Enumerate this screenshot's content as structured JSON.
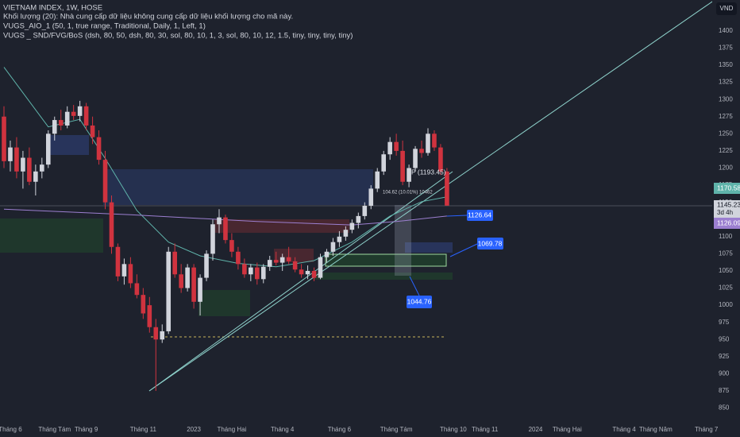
{
  "chart_data": {
    "type": "candlestick",
    "title": "VIETNAM INDEX, 1W, HOSE",
    "indicators": [
      "Khối lượng (20): Nhà cung cấp dữ liệu không cung cấp dữ liệu khối lượng cho mã này.",
      "VUGS_AIO_1 (50, 1, true range, Traditional, Daily, 1, Left, 1)",
      "VUGS _ SND/FVG/BoS (dsh, 80, 50, dsh, 80, 30, sol, 80, 10, 1, 3, sol, 80, 10, 12, 1.5, tiny, tiny, tiny, tiny)"
    ],
    "categories": [
      null,
      "Tháng 6",
      null,
      null,
      null,
      null,
      null,
      null,
      "Tháng Tám",
      null,
      null,
      null,
      null,
      "Tháng 9",
      null,
      null,
      null,
      null,
      null,
      null,
      null,
      null,
      "Tháng 11",
      null,
      null,
      null,
      null,
      null,
      null,
      null,
      "2023",
      null,
      null,
      null,
      null,
      null,
      "Tháng Hai",
      null,
      null,
      null,
      null,
      null,
      null,
      null,
      "Tháng 4",
      null,
      null,
      null,
      null,
      null,
      null,
      null,
      null,
      "Tháng 6",
      null,
      null,
      null,
      null,
      null,
      null,
      null,
      null,
      "Tháng Tám",
      null,
      null,
      null,
      null,
      null,
      null,
      null,
      null,
      "Tháng 10",
      null,
      null,
      null,
      null,
      "Tháng 11",
      null,
      null,
      null,
      null,
      null,
      null,
      null,
      "2024",
      null,
      null,
      null,
      null,
      "Tháng Hai",
      null,
      null,
      null,
      null,
      null,
      null,
      null,
      null,
      "Tháng 4",
      null,
      null,
      null,
      null,
      "Tháng Năm",
      null,
      null,
      null,
      null,
      null,
      null,
      null,
      "Tháng 7"
    ],
    "open": [
      1275,
      1210,
      1230,
      1195,
      1215,
      1180,
      1195,
      1205,
      1250,
      1270,
      1262,
      1282,
      1276,
      1290,
      1262,
      1245,
      1212,
      1150,
      1085,
      1042,
      1060,
      1032,
      1015,
      1000,
      968,
      950,
      962,
      1078,
      1045,
      1025,
      1055,
      1005,
      1040,
      1075,
      1118,
      1128,
      1095,
      1078,
      1060,
      1045,
      1055,
      1038,
      1056,
      1066,
      1062,
      1070,
      1064,
      1052,
      1045,
      1050,
      1040,
      1070,
      1078,
      1092,
      1100,
      1110,
      1120,
      1130,
      1145,
      1170,
      1195,
      1220,
      1238,
      1225,
      1180,
      1200,
      1228,
      1222,
      1250,
      1230,
      1195,
      null,
      null,
      null,
      null,
      null,
      null,
      null,
      null,
      null,
      null,
      null,
      null,
      null,
      null,
      null,
      null,
      null,
      null,
      null,
      null,
      null,
      null,
      null,
      null,
      null,
      null,
      null,
      null,
      null,
      null,
      null,
      null,
      null,
      null,
      null,
      null,
      null,
      null,
      null,
      null,
      null
    ],
    "high": [
      1290,
      1240,
      1245,
      1225,
      1230,
      1205,
      1215,
      1255,
      1275,
      1285,
      1290,
      1292,
      1298,
      1295,
      1275,
      1255,
      1225,
      1160,
      1090,
      1068,
      1070,
      1045,
      1025,
      1012,
      980,
      972,
      1085,
      1090,
      1060,
      1060,
      1060,
      1045,
      1080,
      1125,
      1140,
      1132,
      1105,
      1085,
      1068,
      1060,
      1062,
      1060,
      1072,
      1078,
      1075,
      1085,
      1070,
      1060,
      1058,
      1055,
      1075,
      1082,
      1098,
      1108,
      1115,
      1125,
      1135,
      1150,
      1175,
      1200,
      1225,
      1245,
      1250,
      1240,
      1205,
      1232,
      1240,
      1258,
      1255,
      1235,
      1200,
      null,
      null,
      null,
      null,
      null,
      null,
      null,
      null,
      null,
      null,
      null,
      null,
      null,
      null,
      null,
      null,
      null,
      null,
      null,
      null,
      null,
      null,
      null,
      null,
      null,
      null,
      null,
      null,
      null,
      null,
      null,
      null,
      null,
      null,
      null,
      null,
      null,
      null,
      null,
      null,
      null
    ],
    "low": [
      1200,
      1195,
      1185,
      1170,
      1175,
      1160,
      1185,
      1200,
      1240,
      1255,
      1258,
      1270,
      1268,
      1255,
      1235,
      1205,
      1140,
      1075,
      1035,
      1030,
      1025,
      1010,
      980,
      960,
      875,
      945,
      958,
      1040,
      1018,
      1020,
      995,
      985,
      1035,
      1065,
      1105,
      1090,
      1070,
      1052,
      1040,
      1035,
      1030,
      1032,
      1050,
      1058,
      1050,
      1060,
      1048,
      1040,
      1038,
      1035,
      1038,
      1062,
      1072,
      1085,
      1094,
      1105,
      1112,
      1125,
      1140,
      1165,
      1190,
      1212,
      1218,
      1175,
      1172,
      1195,
      1215,
      1218,
      1225,
      1190,
      1145,
      null,
      null,
      null,
      null,
      null,
      null,
      null,
      null,
      null,
      null,
      null,
      null,
      null,
      null,
      null,
      null,
      null,
      null,
      null,
      null,
      null,
      null,
      null,
      null,
      null,
      null,
      null,
      null,
      null,
      null,
      null,
      null,
      null,
      null,
      null,
      null,
      null,
      null,
      null,
      null,
      null
    ],
    "close": [
      1210,
      1230,
      1195,
      1215,
      1180,
      1195,
      1205,
      1250,
      1270,
      1262,
      1282,
      1276,
      1290,
      1262,
      1245,
      1212,
      1150,
      1085,
      1042,
      1060,
      1032,
      1015,
      988,
      968,
      950,
      962,
      1078,
      1045,
      1025,
      1055,
      1005,
      1040,
      1075,
      1118,
      1128,
      1095,
      1078,
      1060,
      1045,
      1055,
      1038,
      1056,
      1066,
      1062,
      1070,
      1064,
      1052,
      1045,
      1050,
      1040,
      1070,
      1078,
      1092,
      1100,
      1110,
      1120,
      1130,
      1145,
      1170,
      1195,
      1220,
      1238,
      1225,
      1180,
      1200,
      1228,
      1222,
      1250,
      1230,
      1195,
      1145.23,
      null,
      null,
      null,
      null,
      null,
      null,
      null,
      null,
      null,
      null,
      null,
      null,
      null,
      null,
      null,
      null,
      null,
      null,
      null,
      null,
      null,
      null,
      null,
      null,
      null,
      null,
      null,
      null,
      null,
      null,
      null,
      null,
      null,
      null,
      null,
      null,
      null,
      null,
      null,
      null,
      null
    ],
    "up_color": "#d1d4dc",
    "down_color": "#d0333f",
    "lines": [
      {
        "color": "#5fb3aa",
        "x": [
          0,
          7,
          12,
          16,
          21,
          26,
          31,
          37,
          43,
          49,
          55,
          61,
          66,
          70
        ],
        "values": [
          1347,
          1260,
          1271,
          1214,
          1138,
          1092,
          1072,
          1061,
          1056,
          1065,
          1092,
          1130,
          1151,
          1158
        ]
      },
      {
        "color": "#9c7fd0",
        "x": [
          0,
          20,
          40,
          55,
          62,
          70
        ],
        "values": [
          1140,
          1132,
          1122,
          1117,
          1122,
          1130
        ]
      }
    ],
    "ylim": [
      831,
      1445
    ],
    "yticks": [
      850,
      875,
      900,
      925,
      950,
      975,
      1000,
      1025,
      1050,
      1075,
      1100,
      1125,
      1150,
      1175,
      1200,
      1225,
      1250,
      1275,
      1300,
      1325,
      1350,
      1375,
      1400
    ],
    "grid": false,
    "annotations": [
      "1126.64",
      "1069.78",
      "1044.76",
      "P (1193.45)",
      "104.62 (10.01%) 10462",
      "1170.58",
      "1145.23",
      "3d 4h",
      "1126.09",
      "VND"
    ]
  }
}
